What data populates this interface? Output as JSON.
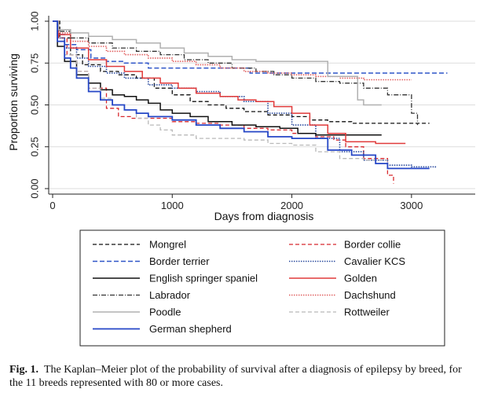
{
  "chart_data": {
    "type": "line",
    "xlabel": "Days from diagnosis",
    "ylabel": "Proportion surviving",
    "xlim": [
      0,
      3500
    ],
    "ylim": [
      0,
      1
    ],
    "x_ticks": [
      0,
      1000,
      2000,
      3000
    ],
    "y_ticks": [
      0,
      0.25,
      0.5,
      0.75,
      1
    ],
    "y_tick_labels": [
      "0.00",
      "0.25",
      "0.50",
      "0.75",
      "1.00"
    ],
    "grid": true,
    "legend_position": "below",
    "series": [
      {
        "name": "Mongrel",
        "color": "#111111",
        "dash": "5,3",
        "width": 1.3,
        "x": [
          0,
          60,
          150,
          250,
          400,
          550,
          700,
          850,
          1000,
          1150,
          1300,
          1450,
          1600,
          1800,
          2000,
          2150,
          2300,
          2500,
          2700,
          2900,
          3150
        ],
        "y": [
          1.0,
          0.9,
          0.8,
          0.74,
          0.7,
          0.68,
          0.66,
          0.6,
          0.56,
          0.52,
          0.5,
          0.48,
          0.46,
          0.44,
          0.43,
          0.41,
          0.4,
          0.39,
          0.39,
          0.39,
          0.39
        ]
      },
      {
        "name": "Border collie",
        "color": "#d8282d",
        "dash": "5,3",
        "width": 1.3,
        "x": [
          0,
          50,
          120,
          200,
          300,
          450,
          550,
          650,
          800,
          1000,
          1200,
          1400,
          1600,
          1800,
          2000,
          2200,
          2350,
          2450,
          2600,
          2800,
          2850
        ],
        "y": [
          1.0,
          0.9,
          0.8,
          0.7,
          0.6,
          0.48,
          0.43,
          0.42,
          0.42,
          0.4,
          0.39,
          0.38,
          0.36,
          0.35,
          0.33,
          0.31,
          0.29,
          0.25,
          0.18,
          0.08,
          0.03
        ]
      },
      {
        "name": "Border terrier",
        "color": "#2f55c8",
        "dash": "6,3",
        "width": 1.5,
        "x": [
          0,
          40,
          100,
          200,
          320,
          450,
          600,
          800,
          1000,
          1200,
          1400,
          1550,
          1650,
          2000,
          2500,
          3000,
          3300
        ],
        "y": [
          1.0,
          0.92,
          0.86,
          0.83,
          0.78,
          0.76,
          0.75,
          0.72,
          0.72,
          0.72,
          0.72,
          0.72,
          0.69,
          0.69,
          0.69,
          0.69,
          0.69
        ]
      },
      {
        "name": "Cavalier KCS",
        "color": "#2a4a9e",
        "dash": "1.5,1.5",
        "width": 1.6,
        "x": [
          0,
          40,
          100,
          200,
          300,
          450,
          600,
          800,
          1000,
          1200,
          1400,
          1600,
          1800,
          2000,
          2200,
          2400,
          2600,
          2800,
          3000,
          3200
        ],
        "y": [
          1.0,
          0.9,
          0.84,
          0.78,
          0.73,
          0.69,
          0.66,
          0.62,
          0.6,
          0.58,
          0.55,
          0.52,
          0.45,
          0.38,
          0.3,
          0.22,
          0.17,
          0.14,
          0.13,
          0.12
        ]
      },
      {
        "name": "English springer spaniel",
        "color": "#111111",
        "dash": "",
        "width": 1.5,
        "x": [
          0,
          40,
          100,
          200,
          300,
          400,
          500,
          600,
          700,
          800,
          900,
          1000,
          1150,
          1300,
          1500,
          1700,
          1900,
          2050,
          2200,
          2400,
          2750
        ],
        "y": [
          1.0,
          0.85,
          0.76,
          0.68,
          0.63,
          0.59,
          0.56,
          0.55,
          0.53,
          0.51,
          0.47,
          0.45,
          0.43,
          0.4,
          0.38,
          0.37,
          0.36,
          0.33,
          0.32,
          0.32,
          0.32
        ]
      },
      {
        "name": "Golden",
        "color": "#e03a3a",
        "dash": "",
        "width": 1.5,
        "x": [
          0,
          50,
          150,
          300,
          450,
          600,
          750,
          900,
          1050,
          1200,
          1400,
          1550,
          1700,
          1850,
          2000,
          2150,
          2300,
          2450,
          2700,
          2950
        ],
        "y": [
          1.0,
          0.92,
          0.84,
          0.77,
          0.73,
          0.7,
          0.66,
          0.63,
          0.6,
          0.57,
          0.55,
          0.53,
          0.52,
          0.49,
          0.45,
          0.38,
          0.33,
          0.28,
          0.27,
          0.27
        ]
      },
      {
        "name": "Labrador",
        "color": "#333333",
        "dash": "6,2,1,2",
        "width": 1.3,
        "x": [
          0,
          50,
          150,
          300,
          500,
          700,
          900,
          1100,
          1300,
          1500,
          1700,
          1850,
          2000,
          2200,
          2400,
          2600,
          2800,
          2950,
          3000,
          3050
        ],
        "y": [
          1.0,
          0.94,
          0.9,
          0.87,
          0.84,
          0.82,
          0.8,
          0.77,
          0.75,
          0.72,
          0.7,
          0.68,
          0.66,
          0.64,
          0.63,
          0.6,
          0.56,
          0.56,
          0.45,
          0.38
        ]
      },
      {
        "name": "Dachshund",
        "color": "#e06060",
        "dash": "1.5,1.5",
        "width": 1.6,
        "x": [
          0,
          50,
          150,
          300,
          450,
          600,
          800,
          1000,
          1200,
          1400,
          1600,
          1800,
          2000,
          2200,
          2400,
          2600,
          2800,
          3000
        ],
        "y": [
          1.0,
          0.93,
          0.88,
          0.85,
          0.82,
          0.8,
          0.78,
          0.76,
          0.74,
          0.72,
          0.7,
          0.69,
          0.68,
          0.67,
          0.66,
          0.65,
          0.65,
          0.65
        ]
      },
      {
        "name": "Poodle",
        "color": "#b0b0b0",
        "dash": "",
        "width": 1.5,
        "x": [
          0,
          50,
          150,
          300,
          500,
          700,
          900,
          1100,
          1300,
          1500,
          1700,
          1900,
          2100,
          2200,
          2300,
          2450,
          2550,
          2600,
          2750
        ],
        "y": [
          1.0,
          0.95,
          0.93,
          0.91,
          0.89,
          0.87,
          0.84,
          0.81,
          0.79,
          0.77,
          0.76,
          0.76,
          0.76,
          0.76,
          0.67,
          0.67,
          0.53,
          0.5,
          0.5
        ]
      },
      {
        "name": "Rottweiler",
        "color": "#b8b8b8",
        "dash": "5,3",
        "width": 1.3,
        "x": [
          0,
          40,
          100,
          200,
          300,
          400,
          500,
          600,
          700,
          800,
          900,
          1000,
          1200,
          1400,
          1600,
          1800,
          2000,
          2200,
          2400,
          2600,
          2800
        ],
        "y": [
          1.0,
          0.88,
          0.8,
          0.7,
          0.6,
          0.54,
          0.5,
          0.47,
          0.42,
          0.38,
          0.35,
          0.32,
          0.3,
          0.3,
          0.29,
          0.27,
          0.26,
          0.22,
          0.18,
          0.17,
          0.17
        ]
      },
      {
        "name": "German shepherd",
        "color": "#2546c6",
        "dash": "",
        "width": 1.8,
        "x": [
          0,
          40,
          100,
          150,
          200,
          300,
          400,
          500,
          600,
          700,
          800,
          1000,
          1200,
          1400,
          1600,
          1800,
          2000,
          2100,
          2300,
          2500,
          2700,
          2800,
          3150
        ],
        "y": [
          1.0,
          0.88,
          0.78,
          0.72,
          0.66,
          0.58,
          0.53,
          0.5,
          0.47,
          0.45,
          0.43,
          0.41,
          0.38,
          0.36,
          0.34,
          0.31,
          0.3,
          0.3,
          0.23,
          0.2,
          0.15,
          0.12,
          0.12
        ]
      }
    ],
    "legend_columns": [
      [
        "Mongrel",
        "Border terrier",
        "English springer spaniel",
        "Labrador",
        "Poodle",
        "German shepherd"
      ],
      [
        "Border collie",
        "Cavalier KCS",
        "Golden",
        "Dachshund",
        "Rottweiler"
      ]
    ]
  },
  "caption": {
    "label": "Fig. 1.",
    "text": "The Kaplan–Meier plot of the probability of survival after a diagnosis of epilepsy by breed, for the 11 breeds represented with 80 or more cases."
  }
}
